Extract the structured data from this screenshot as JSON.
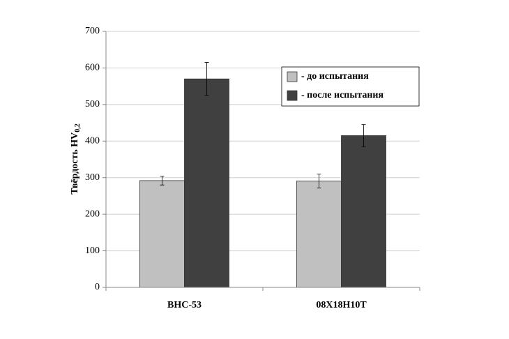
{
  "chart_data": {
    "type": "bar",
    "y_label": "Твёрдость HV",
    "y_label_sub": "0,2",
    "categories": [
      "ВНС-53",
      "08Х18Н10Т"
    ],
    "series": [
      {
        "name": "- до испытания",
        "color": "#c0c0c0",
        "values": [
          292,
          291
        ],
        "errors": [
          12,
          19
        ]
      },
      {
        "name": "- после испытания",
        "color": "#404040",
        "values": [
          570,
          415
        ],
        "errors": [
          45,
          30
        ]
      }
    ],
    "ylim": [
      0,
      700
    ],
    "yticks": [
      0,
      100,
      200,
      300,
      400,
      500,
      600,
      700
    ],
    "grid": true,
    "legend": "upper right"
  }
}
